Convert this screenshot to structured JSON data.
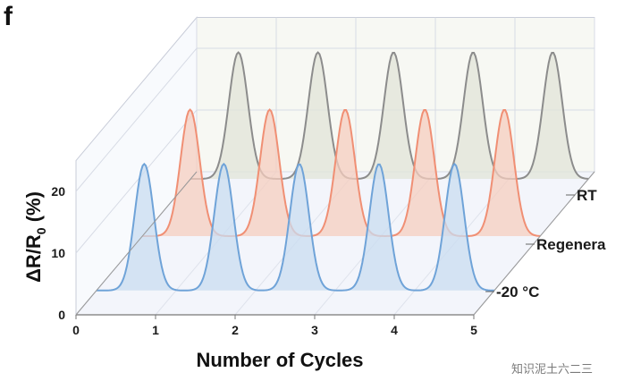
{
  "panel_letter": "f",
  "watermark": "知识泥土六二三",
  "chart_data": {
    "type": "line",
    "title": "",
    "xlabel": "Number of Cycles",
    "ylabel": "ΔR/R0 (%)",
    "xlim": [
      0,
      5
    ],
    "ylim": [
      0,
      25
    ],
    "x_ticks": [
      "0",
      "1",
      "2",
      "3",
      "4",
      "5"
    ],
    "y_ticks": [
      "0",
      "10",
      "20"
    ],
    "grid": true,
    "layout": "3d-waterfall",
    "series": [
      {
        "name": "-20 °C",
        "color": "#6fa3d8",
        "fill": "#c9dcf0",
        "peak": 20.5,
        "peak_x": [
          0.6,
          1.6,
          2.55,
          3.55,
          4.5
        ]
      },
      {
        "name": "Regenera",
        "color": "#f08f74",
        "fill": "#f6cdbf",
        "peak": 20.5,
        "peak_x": [
          0.6,
          1.6,
          2.55,
          3.55,
          4.55
        ]
      },
      {
        "name": "RT",
        "color": "#8c8c8c",
        "fill": "#e2e4d8",
        "peak": 20.5,
        "peak_x": [
          0.6,
          1.6,
          2.55,
          3.55,
          4.55
        ]
      }
    ]
  }
}
